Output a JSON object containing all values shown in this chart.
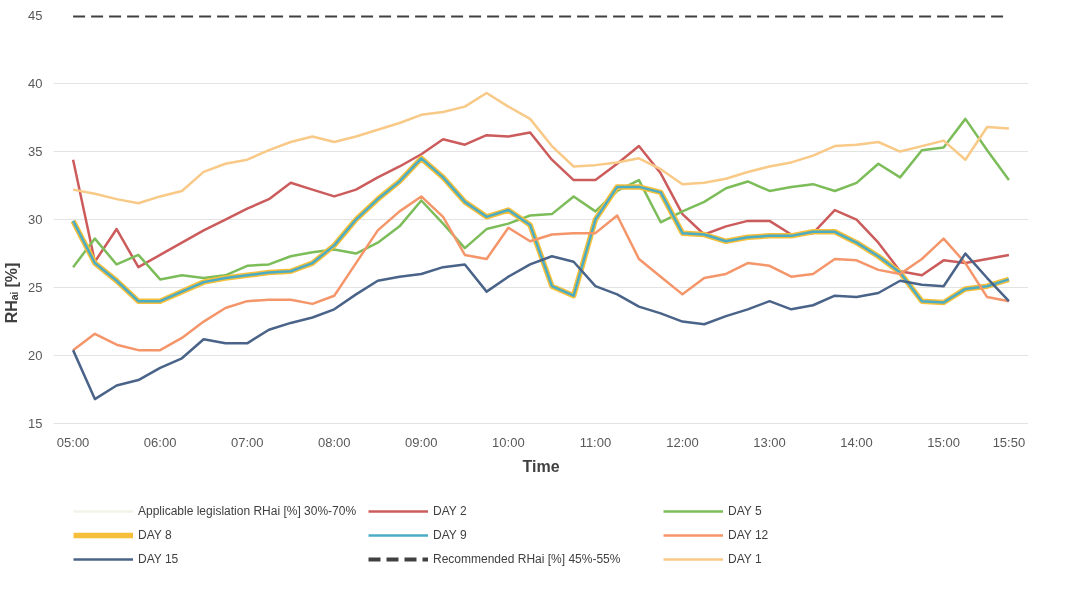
{
  "chart_data": {
    "type": "line",
    "xlabel": "Time",
    "ylabel": "RHₐᵢ [%]",
    "categories": [
      "05:00",
      null,
      null,
      null,
      "06:00",
      null,
      null,
      null,
      "07:00",
      null,
      null,
      null,
      "08:00",
      null,
      null,
      null,
      "09:00",
      null,
      null,
      null,
      "10:00",
      null,
      null,
      null,
      "11:00",
      null,
      null,
      null,
      "12:00",
      null,
      null,
      null,
      "13:00",
      null,
      null,
      null,
      "14:00",
      null,
      null,
      null,
      "15:00",
      null,
      null,
      "15:50"
    ],
    "ylim": [
      15,
      45
    ],
    "yticks": [
      15,
      20,
      25,
      30,
      35,
      40,
      45
    ],
    "grid": "y",
    "legend": "bottom",
    "marker": "none",
    "line_style": "solid",
    "series": [
      {
        "name": "Applicable legislation RHai [%] 30%-70%",
        "color": "#f3f3ea",
        "values": [
          null,
          null,
          null,
          null,
          null,
          null,
          null,
          null,
          null,
          null,
          null,
          null,
          null,
          null,
          null,
          null,
          null,
          null,
          null,
          null,
          null,
          null,
          null,
          null,
          null,
          null,
          null,
          null,
          null,
          null,
          null,
          null,
          null,
          null,
          null,
          null,
          null,
          null,
          null,
          null,
          null,
          null,
          null,
          null
        ]
      },
      {
        "name": "DAY 2",
        "color": "#cc5b5c",
        "values": [
          34.4,
          26.9,
          29.3,
          26.5,
          27.4,
          28.3,
          29.2,
          30.0,
          30.8,
          31.5,
          32.7,
          32.2,
          31.7,
          32.2,
          33.1,
          33.9,
          34.8,
          35.9,
          35.5,
          36.2,
          36.1,
          36.4,
          34.4,
          32.9,
          32.9,
          34.1,
          35.4,
          33.4,
          30.4,
          28.9,
          29.5,
          29.9,
          29.9,
          28.9,
          29.0,
          30.7,
          30.0,
          28.3,
          26.2,
          25.9,
          27.0,
          26.8,
          27.1,
          27.4
        ]
      },
      {
        "name": "DAY 5",
        "color": "#7cbd5a",
        "values": [
          26.5,
          28.6,
          26.7,
          27.4,
          25.6,
          25.9,
          25.7,
          25.9,
          26.6,
          26.7,
          27.3,
          27.6,
          27.8,
          27.5,
          28.3,
          29.5,
          31.4,
          29.7,
          27.9,
          29.3,
          29.7,
          30.3,
          30.4,
          31.7,
          30.6,
          32.1,
          32.9,
          29.8,
          30.6,
          31.3,
          32.3,
          32.8,
          32.1,
          32.4,
          32.6,
          32.1,
          32.7,
          34.1,
          33.1,
          35.1,
          35.3,
          37.4,
          35.1,
          32.9
        ]
      },
      {
        "name": "DAY 8",
        "color": "#f5bf3a",
        "values": [
          29.9,
          26.8,
          25.5,
          24.0,
          24.0,
          24.7,
          25.4,
          25.7,
          25.9,
          26.1,
          26.2,
          26.8,
          28.1,
          30.0,
          31.5,
          32.8,
          34.5,
          33.1,
          31.3,
          30.2,
          30.7,
          29.6,
          25.1,
          24.4,
          30.0,
          32.4,
          32.4,
          32.0,
          29.0,
          28.9,
          28.4,
          28.7,
          28.8,
          28.8,
          29.1,
          29.1,
          28.3,
          27.3,
          26.1,
          24.0,
          23.9,
          24.9,
          25.1,
          25.6
        ]
      },
      {
        "name": "DAY 9",
        "color": "#4bacc6",
        "values": [
          29.9,
          26.8,
          25.5,
          24.0,
          24.0,
          24.7,
          25.4,
          25.7,
          25.9,
          26.1,
          26.2,
          26.8,
          28.1,
          30.0,
          31.5,
          32.8,
          34.5,
          33.1,
          31.3,
          30.2,
          30.7,
          29.6,
          25.1,
          24.4,
          30.0,
          32.4,
          32.4,
          32.0,
          29.0,
          28.9,
          28.4,
          28.7,
          28.8,
          28.8,
          29.1,
          29.1,
          28.3,
          27.3,
          26.1,
          24.0,
          23.9,
          24.9,
          25.1,
          25.6
        ]
      },
      {
        "name": "DAY 12",
        "color": "#f4956a",
        "values": [
          20.4,
          21.6,
          20.8,
          20.4,
          20.4,
          21.3,
          22.5,
          23.5,
          24.0,
          24.1,
          24.1,
          23.8,
          24.4,
          26.8,
          29.2,
          30.6,
          31.7,
          30.2,
          27.4,
          27.1,
          29.4,
          28.4,
          28.9,
          29.0,
          29.0,
          30.3,
          27.1,
          25.8,
          24.5,
          25.7,
          26.0,
          26.8,
          26.6,
          25.8,
          26.0,
          27.1,
          27.0,
          26.3,
          26.0,
          27.1,
          28.6,
          26.8,
          24.3,
          24.0
        ]
      },
      {
        "name": "DAY 15",
        "color": "#4a6388",
        "values": [
          20.4,
          16.8,
          17.8,
          18.2,
          19.1,
          19.8,
          21.2,
          20.9,
          20.9,
          21.9,
          22.4,
          22.8,
          23.4,
          24.5,
          25.5,
          25.8,
          26.0,
          26.5,
          26.7,
          24.7,
          25.8,
          26.7,
          27.3,
          26.9,
          25.1,
          24.5,
          23.6,
          23.1,
          22.5,
          22.3,
          22.9,
          23.4,
          24.0,
          23.4,
          23.7,
          24.4,
          24.3,
          24.6,
          25.5,
          25.2,
          25.1,
          27.5,
          25.7,
          24.0
        ]
      },
      {
        "name": "Recommended RHai [%] 45%-55%",
        "color": "#404040",
        "line_style": "dashed",
        "values": [
          45,
          45,
          45,
          45,
          45,
          45,
          45,
          45,
          45,
          45,
          45,
          45,
          45,
          45,
          45,
          45,
          45,
          45,
          45,
          45,
          45,
          45,
          45,
          45,
          45,
          45,
          45,
          45,
          45,
          45,
          45,
          45,
          45,
          45,
          45,
          45,
          45,
          45,
          45,
          45,
          45,
          45,
          45,
          45
        ]
      },
      {
        "name": "DAY 1",
        "color": "#f8c987",
        "values": [
          32.2,
          31.9,
          31.5,
          31.2,
          31.7,
          32.1,
          33.5,
          34.1,
          34.4,
          35.1,
          35.7,
          36.1,
          35.7,
          36.1,
          36.6,
          37.1,
          37.7,
          37.9,
          38.3,
          39.3,
          38.3,
          37.4,
          35.4,
          33.9,
          34.0,
          34.2,
          34.5,
          33.7,
          32.6,
          32.7,
          33.0,
          33.5,
          33.9,
          34.2,
          34.7,
          35.4,
          35.5,
          35.7,
          35.0,
          35.4,
          35.8,
          34.4,
          36.8,
          36.7
        ]
      }
    ]
  }
}
